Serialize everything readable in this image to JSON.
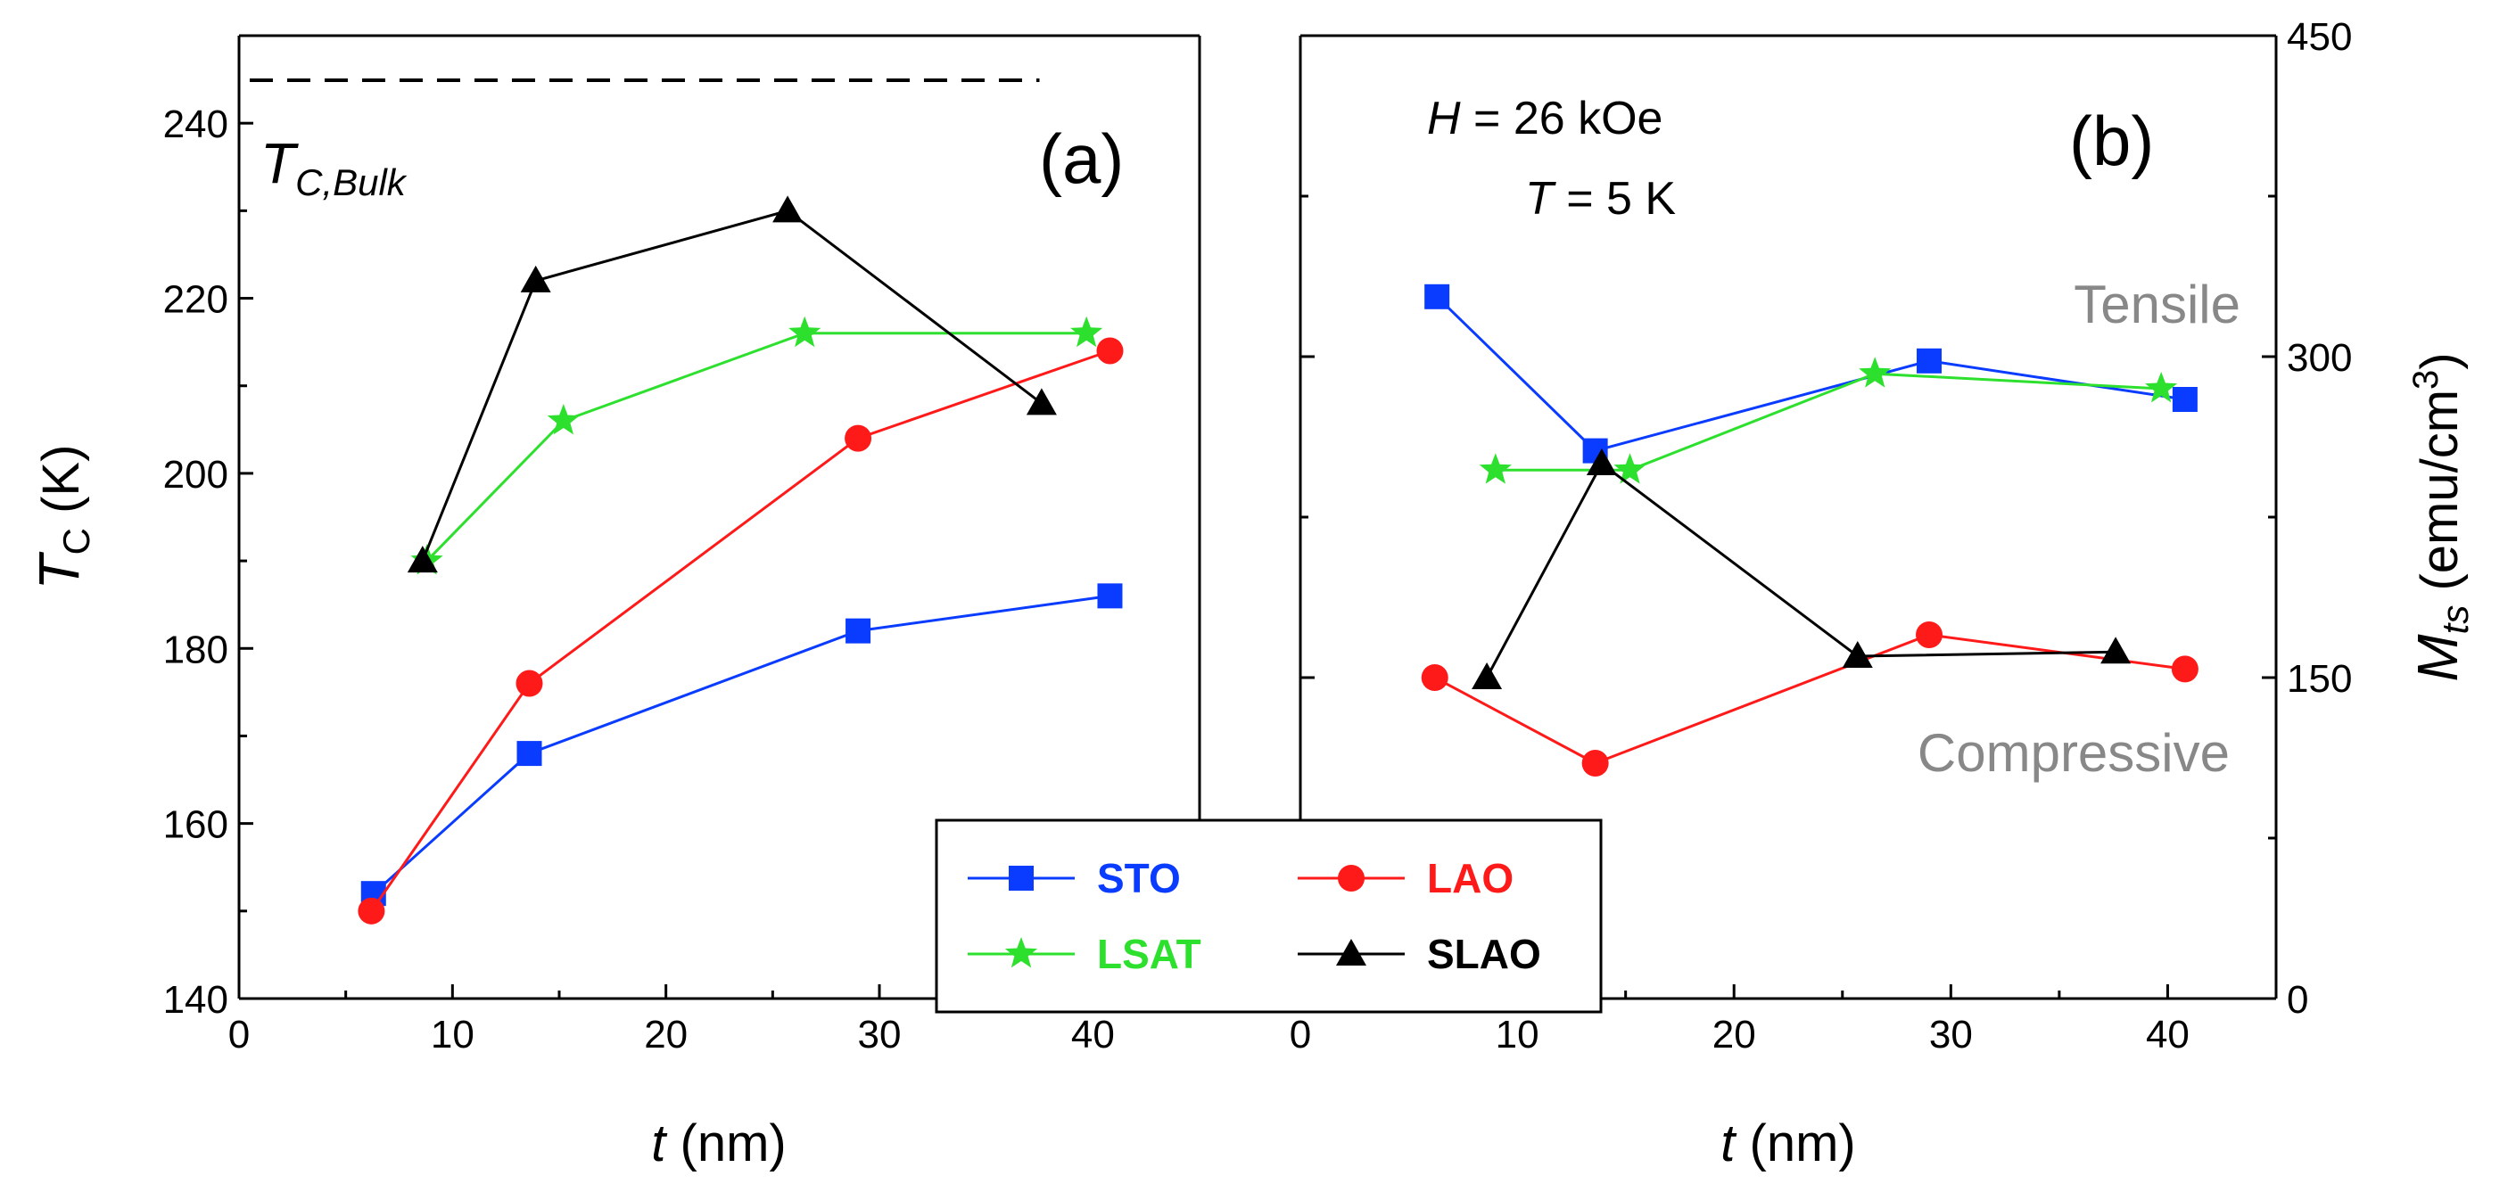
{
  "chart_data": [
    {
      "type": "line",
      "panel_label": "(a)",
      "xlabel": {
        "var": "t",
        "unit": " (nm)"
      },
      "ylabel": {
        "var": "T",
        "sub": "C",
        "unit": " (K)"
      },
      "xlim": [
        0,
        45
      ],
      "ylim": [
        140,
        250
      ],
      "xticks": [
        "0",
        "10",
        "20",
        "30",
        "40"
      ],
      "yticks": [
        "140",
        "160",
        "180",
        "200",
        "220",
        "240"
      ],
      "reference_line": {
        "y": 250,
        "label": "T",
        "label_sub": "C,Bulk"
      },
      "series": [
        {
          "name": "STO",
          "x": [
            6.3,
            13.6,
            29.0,
            40.8
          ],
          "y": [
            152,
            168,
            182,
            186
          ]
        },
        {
          "name": "LAO",
          "x": [
            6.2,
            13.6,
            29.0,
            40.8
          ],
          "y": [
            150,
            176,
            204,
            214
          ]
        },
        {
          "name": "LSAT",
          "x": [
            8.8,
            15.2,
            26.5,
            39.7
          ],
          "y": [
            190,
            206,
            216,
            216
          ]
        },
        {
          "name": "SLAO",
          "x": [
            8.6,
            13.9,
            25.7,
            37.6
          ],
          "y": [
            190,
            222,
            230,
            208
          ]
        }
      ]
    },
    {
      "type": "line",
      "panel_label": "(b)",
      "xlabel": {
        "var": "t",
        "unit": " (nm)"
      },
      "ylabel": {
        "var": "M",
        "sub": "ts",
        "unit": " (emu/cm",
        "sup": "3",
        "close": ")"
      },
      "xlim": [
        0,
        45
      ],
      "ylim": [
        0,
        450
      ],
      "xticks": [
        "0",
        "10",
        "20",
        "30",
        "40"
      ],
      "yticks": [
        "0",
        "150",
        "300",
        "450"
      ],
      "conditions": {
        "h_var": "H",
        "h_val": " = 26 kOe",
        "t_var": "T",
        "t_val": " =  5 K"
      },
      "annotations": {
        "upper": "Tensile",
        "lower": "Compressive"
      },
      "series": [
        {
          "name": "STO",
          "x": [
            6.3,
            13.6,
            29.0,
            40.8
          ],
          "y": [
            328,
            256,
            298,
            280
          ]
        },
        {
          "name": "LAO",
          "x": [
            6.2,
            13.6,
            29.0,
            40.8
          ],
          "y": [
            150,
            110,
            170,
            154
          ]
        },
        {
          "name": "LSAT",
          "x": [
            9.0,
            15.2,
            26.5,
            39.7
          ],
          "y": [
            247,
            247,
            292,
            285
          ]
        },
        {
          "name": "SLAO",
          "x": [
            8.6,
            13.9,
            25.7,
            37.6
          ],
          "y": [
            150,
            250,
            160,
            162
          ]
        }
      ]
    }
  ],
  "legend": [
    {
      "name": "STO",
      "label": "STO"
    },
    {
      "name": "LAO",
      "label": "LAO"
    },
    {
      "name": "LSAT",
      "label": "LSAT"
    },
    {
      "name": "SLAO",
      "label": "SLAO"
    }
  ],
  "styles": {
    "STO": {
      "color": "#0a3cff",
      "marker": "square"
    },
    "LAO": {
      "color": "#ff1a1a",
      "marker": "circle"
    },
    "LSAT": {
      "color": "#2ee02e",
      "marker": "star"
    },
    "SLAO": {
      "color": "#000000",
      "marker": "triangle"
    },
    "annotation_color": "#888888"
  }
}
